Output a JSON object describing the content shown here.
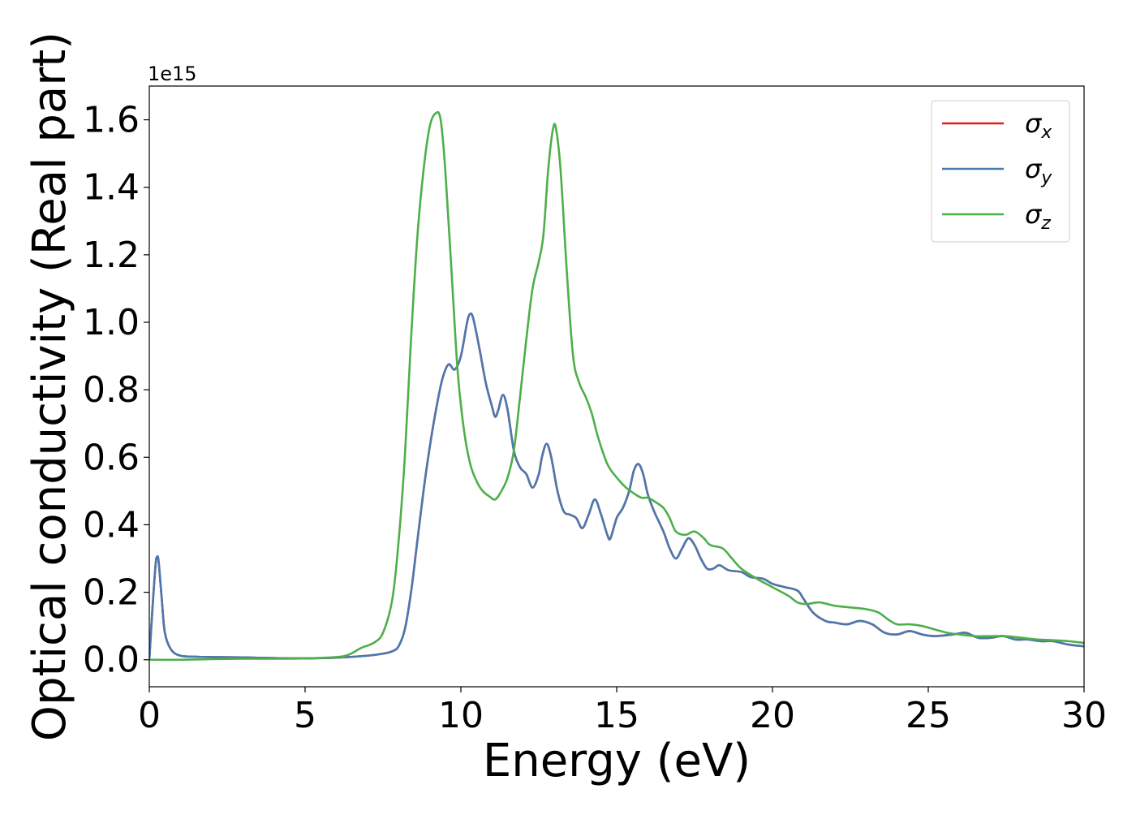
{
  "chart_data": {
    "type": "line",
    "title": "",
    "xlabel": "Energy (eV)",
    "ylabel": "Optical conductivity (Real part)",
    "offset_text": "1e15",
    "xlim": [
      0,
      30
    ],
    "ylim": [
      -0.08,
      1.7
    ],
    "xticks": [
      0,
      5,
      10,
      15,
      20,
      25,
      30
    ],
    "yticks": [
      0.0,
      0.2,
      0.4,
      0.6,
      0.8,
      1.0,
      1.2,
      1.4,
      1.6
    ],
    "ytick_labels": [
      "0.0",
      "0.2",
      "0.4",
      "0.6",
      "0.8",
      "1.0",
      "1.2",
      "1.4",
      "1.6"
    ],
    "grid": false,
    "legend_position": "top-right",
    "series": [
      {
        "name": "σx",
        "symbol": "σ",
        "subscript": "x",
        "color": "#e41a1c",
        "points": [
          [
            0,
            0
          ],
          [
            0.1,
            0.15
          ],
          [
            0.2,
            0.28
          ],
          [
            0.25,
            0.305
          ],
          [
            0.3,
            0.29
          ],
          [
            0.4,
            0.18
          ],
          [
            0.5,
            0.08
          ],
          [
            0.7,
            0.03
          ],
          [
            1.0,
            0.012
          ],
          [
            1.5,
            0.009
          ],
          [
            2,
            0.008
          ],
          [
            3,
            0.007
          ],
          [
            4,
            0.005
          ],
          [
            5,
            0.004
          ],
          [
            6,
            0.006
          ],
          [
            7,
            0.012
          ],
          [
            7.5,
            0.018
          ],
          [
            7.8,
            0.025
          ],
          [
            8,
            0.04
          ],
          [
            8.2,
            0.09
          ],
          [
            8.4,
            0.2
          ],
          [
            8.6,
            0.35
          ],
          [
            8.8,
            0.5
          ],
          [
            9.0,
            0.63
          ],
          [
            9.2,
            0.74
          ],
          [
            9.4,
            0.83
          ],
          [
            9.6,
            0.875
          ],
          [
            9.8,
            0.86
          ],
          [
            10.0,
            0.9
          ],
          [
            10.2,
            1.0
          ],
          [
            10.3,
            1.025
          ],
          [
            10.4,
            1.01
          ],
          [
            10.6,
            0.92
          ],
          [
            10.8,
            0.82
          ],
          [
            11.0,
            0.75
          ],
          [
            11.1,
            0.72
          ],
          [
            11.2,
            0.74
          ],
          [
            11.35,
            0.785
          ],
          [
            11.5,
            0.74
          ],
          [
            11.7,
            0.62
          ],
          [
            11.9,
            0.57
          ],
          [
            12.1,
            0.55
          ],
          [
            12.3,
            0.51
          ],
          [
            12.5,
            0.55
          ],
          [
            12.6,
            0.6
          ],
          [
            12.75,
            0.64
          ],
          [
            12.9,
            0.6
          ],
          [
            13.1,
            0.5
          ],
          [
            13.3,
            0.44
          ],
          [
            13.5,
            0.43
          ],
          [
            13.7,
            0.42
          ],
          [
            13.9,
            0.39
          ],
          [
            14.1,
            0.43
          ],
          [
            14.3,
            0.475
          ],
          [
            14.5,
            0.43
          ],
          [
            14.7,
            0.37
          ],
          [
            14.8,
            0.36
          ],
          [
            15.0,
            0.42
          ],
          [
            15.2,
            0.45
          ],
          [
            15.4,
            0.5
          ],
          [
            15.55,
            0.56
          ],
          [
            15.7,
            0.58
          ],
          [
            15.85,
            0.55
          ],
          [
            16.0,
            0.49
          ],
          [
            16.2,
            0.44
          ],
          [
            16.5,
            0.38
          ],
          [
            16.7,
            0.33
          ],
          [
            16.9,
            0.3
          ],
          [
            17.1,
            0.33
          ],
          [
            17.3,
            0.36
          ],
          [
            17.5,
            0.34
          ],
          [
            17.7,
            0.3
          ],
          [
            17.9,
            0.27
          ],
          [
            18.1,
            0.27
          ],
          [
            18.3,
            0.28
          ],
          [
            18.6,
            0.265
          ],
          [
            19.0,
            0.26
          ],
          [
            19.3,
            0.245
          ],
          [
            19.7,
            0.24
          ],
          [
            20.0,
            0.225
          ],
          [
            20.4,
            0.215
          ],
          [
            20.8,
            0.205
          ],
          [
            21.0,
            0.18
          ],
          [
            21.3,
            0.14
          ],
          [
            21.7,
            0.115
          ],
          [
            22.0,
            0.11
          ],
          [
            22.4,
            0.105
          ],
          [
            22.8,
            0.115
          ],
          [
            23.2,
            0.105
          ],
          [
            23.6,
            0.08
          ],
          [
            24.0,
            0.075
          ],
          [
            24.4,
            0.085
          ],
          [
            24.8,
            0.075
          ],
          [
            25.2,
            0.07
          ],
          [
            25.8,
            0.075
          ],
          [
            26.2,
            0.08
          ],
          [
            26.6,
            0.065
          ],
          [
            27.0,
            0.065
          ],
          [
            27.4,
            0.07
          ],
          [
            27.8,
            0.06
          ],
          [
            28.2,
            0.06
          ],
          [
            28.6,
            0.055
          ],
          [
            29.0,
            0.055
          ],
          [
            29.5,
            0.045
          ],
          [
            30.0,
            0.04
          ]
        ]
      },
      {
        "name": "σy",
        "symbol": "σ",
        "subscript": "y",
        "color": "#4a79b0",
        "points": [
          [
            0,
            0
          ],
          [
            0.1,
            0.15
          ],
          [
            0.2,
            0.28
          ],
          [
            0.25,
            0.305
          ],
          [
            0.3,
            0.29
          ],
          [
            0.4,
            0.18
          ],
          [
            0.5,
            0.08
          ],
          [
            0.7,
            0.03
          ],
          [
            1.0,
            0.012
          ],
          [
            1.5,
            0.009
          ],
          [
            2,
            0.008
          ],
          [
            3,
            0.007
          ],
          [
            4,
            0.005
          ],
          [
            5,
            0.004
          ],
          [
            6,
            0.006
          ],
          [
            7,
            0.012
          ],
          [
            7.5,
            0.018
          ],
          [
            7.8,
            0.025
          ],
          [
            8,
            0.04
          ],
          [
            8.2,
            0.09
          ],
          [
            8.4,
            0.2
          ],
          [
            8.6,
            0.35
          ],
          [
            8.8,
            0.5
          ],
          [
            9.0,
            0.63
          ],
          [
            9.2,
            0.74
          ],
          [
            9.4,
            0.83
          ],
          [
            9.6,
            0.875
          ],
          [
            9.8,
            0.86
          ],
          [
            10.0,
            0.9
          ],
          [
            10.2,
            1.0
          ],
          [
            10.3,
            1.025
          ],
          [
            10.4,
            1.01
          ],
          [
            10.6,
            0.92
          ],
          [
            10.8,
            0.82
          ],
          [
            11.0,
            0.75
          ],
          [
            11.1,
            0.72
          ],
          [
            11.2,
            0.74
          ],
          [
            11.35,
            0.785
          ],
          [
            11.5,
            0.74
          ],
          [
            11.7,
            0.62
          ],
          [
            11.9,
            0.57
          ],
          [
            12.1,
            0.55
          ],
          [
            12.3,
            0.51
          ],
          [
            12.5,
            0.55
          ],
          [
            12.6,
            0.6
          ],
          [
            12.75,
            0.64
          ],
          [
            12.9,
            0.6
          ],
          [
            13.1,
            0.5
          ],
          [
            13.3,
            0.44
          ],
          [
            13.5,
            0.43
          ],
          [
            13.7,
            0.42
          ],
          [
            13.9,
            0.39
          ],
          [
            14.1,
            0.43
          ],
          [
            14.3,
            0.475
          ],
          [
            14.5,
            0.43
          ],
          [
            14.7,
            0.37
          ],
          [
            14.8,
            0.36
          ],
          [
            15.0,
            0.42
          ],
          [
            15.2,
            0.45
          ],
          [
            15.4,
            0.5
          ],
          [
            15.55,
            0.56
          ],
          [
            15.7,
            0.58
          ],
          [
            15.85,
            0.55
          ],
          [
            16.0,
            0.49
          ],
          [
            16.2,
            0.44
          ],
          [
            16.5,
            0.38
          ],
          [
            16.7,
            0.33
          ],
          [
            16.9,
            0.3
          ],
          [
            17.1,
            0.33
          ],
          [
            17.3,
            0.36
          ],
          [
            17.5,
            0.34
          ],
          [
            17.7,
            0.3
          ],
          [
            17.9,
            0.27
          ],
          [
            18.1,
            0.27
          ],
          [
            18.3,
            0.28
          ],
          [
            18.6,
            0.265
          ],
          [
            19.0,
            0.26
          ],
          [
            19.3,
            0.245
          ],
          [
            19.7,
            0.24
          ],
          [
            20.0,
            0.225
          ],
          [
            20.4,
            0.215
          ],
          [
            20.8,
            0.205
          ],
          [
            21.0,
            0.18
          ],
          [
            21.3,
            0.14
          ],
          [
            21.7,
            0.115
          ],
          [
            22.0,
            0.11
          ],
          [
            22.4,
            0.105
          ],
          [
            22.8,
            0.115
          ],
          [
            23.2,
            0.105
          ],
          [
            23.6,
            0.08
          ],
          [
            24.0,
            0.075
          ],
          [
            24.4,
            0.085
          ],
          [
            24.8,
            0.075
          ],
          [
            25.2,
            0.07
          ],
          [
            25.8,
            0.075
          ],
          [
            26.2,
            0.08
          ],
          [
            26.6,
            0.065
          ],
          [
            27.0,
            0.065
          ],
          [
            27.4,
            0.07
          ],
          [
            27.8,
            0.06
          ],
          [
            28.2,
            0.06
          ],
          [
            28.6,
            0.055
          ],
          [
            29.0,
            0.055
          ],
          [
            29.5,
            0.045
          ],
          [
            30.0,
            0.04
          ]
        ]
      },
      {
        "name": "σz",
        "symbol": "σ",
        "subscript": "z",
        "color": "#4daf4a",
        "points": [
          [
            0,
            0
          ],
          [
            1,
            0
          ],
          [
            2,
            0.002
          ],
          [
            3,
            0.003
          ],
          [
            4,
            0.003
          ],
          [
            5,
            0.004
          ],
          [
            6,
            0.008
          ],
          [
            6.4,
            0.015
          ],
          [
            6.8,
            0.035
          ],
          [
            7.2,
            0.05
          ],
          [
            7.5,
            0.08
          ],
          [
            7.8,
            0.18
          ],
          [
            8.0,
            0.35
          ],
          [
            8.2,
            0.6
          ],
          [
            8.4,
            0.95
          ],
          [
            8.6,
            1.25
          ],
          [
            8.8,
            1.45
          ],
          [
            9.0,
            1.58
          ],
          [
            9.2,
            1.62
          ],
          [
            9.35,
            1.6
          ],
          [
            9.5,
            1.45
          ],
          [
            9.7,
            1.15
          ],
          [
            9.9,
            0.85
          ],
          [
            10.1,
            0.68
          ],
          [
            10.3,
            0.58
          ],
          [
            10.5,
            0.53
          ],
          [
            10.7,
            0.5
          ],
          [
            10.9,
            0.485
          ],
          [
            11.1,
            0.475
          ],
          [
            11.3,
            0.5
          ],
          [
            11.5,
            0.54
          ],
          [
            11.7,
            0.62
          ],
          [
            11.9,
            0.78
          ],
          [
            12.1,
            0.95
          ],
          [
            12.3,
            1.1
          ],
          [
            12.5,
            1.18
          ],
          [
            12.65,
            1.26
          ],
          [
            12.8,
            1.45
          ],
          [
            12.95,
            1.57
          ],
          [
            13.05,
            1.575
          ],
          [
            13.2,
            1.45
          ],
          [
            13.4,
            1.15
          ],
          [
            13.6,
            0.9
          ],
          [
            13.8,
            0.82
          ],
          [
            14.0,
            0.78
          ],
          [
            14.2,
            0.73
          ],
          [
            14.4,
            0.66
          ],
          [
            14.7,
            0.58
          ],
          [
            15.0,
            0.54
          ],
          [
            15.3,
            0.51
          ],
          [
            15.6,
            0.49
          ],
          [
            15.8,
            0.48
          ],
          [
            16.0,
            0.48
          ],
          [
            16.2,
            0.47
          ],
          [
            16.5,
            0.45
          ],
          [
            16.7,
            0.42
          ],
          [
            16.9,
            0.38
          ],
          [
            17.2,
            0.37
          ],
          [
            17.5,
            0.38
          ],
          [
            17.8,
            0.36
          ],
          [
            18.0,
            0.34
          ],
          [
            18.4,
            0.33
          ],
          [
            18.7,
            0.3
          ],
          [
            19.0,
            0.27
          ],
          [
            19.5,
            0.24
          ],
          [
            20.0,
            0.215
          ],
          [
            20.5,
            0.19
          ],
          [
            20.8,
            0.17
          ],
          [
            21.1,
            0.165
          ],
          [
            21.5,
            0.17
          ],
          [
            22.0,
            0.16
          ],
          [
            22.5,
            0.155
          ],
          [
            23.0,
            0.15
          ],
          [
            23.4,
            0.14
          ],
          [
            23.7,
            0.12
          ],
          [
            24.0,
            0.105
          ],
          [
            24.4,
            0.105
          ],
          [
            24.8,
            0.1
          ],
          [
            25.2,
            0.09
          ],
          [
            25.6,
            0.08
          ],
          [
            26.0,
            0.075
          ],
          [
            26.5,
            0.07
          ],
          [
            27.0,
            0.07
          ],
          [
            27.5,
            0.07
          ],
          [
            28.0,
            0.065
          ],
          [
            28.5,
            0.06
          ],
          [
            29.0,
            0.058
          ],
          [
            29.5,
            0.055
          ],
          [
            30.0,
            0.05
          ]
        ]
      }
    ]
  }
}
